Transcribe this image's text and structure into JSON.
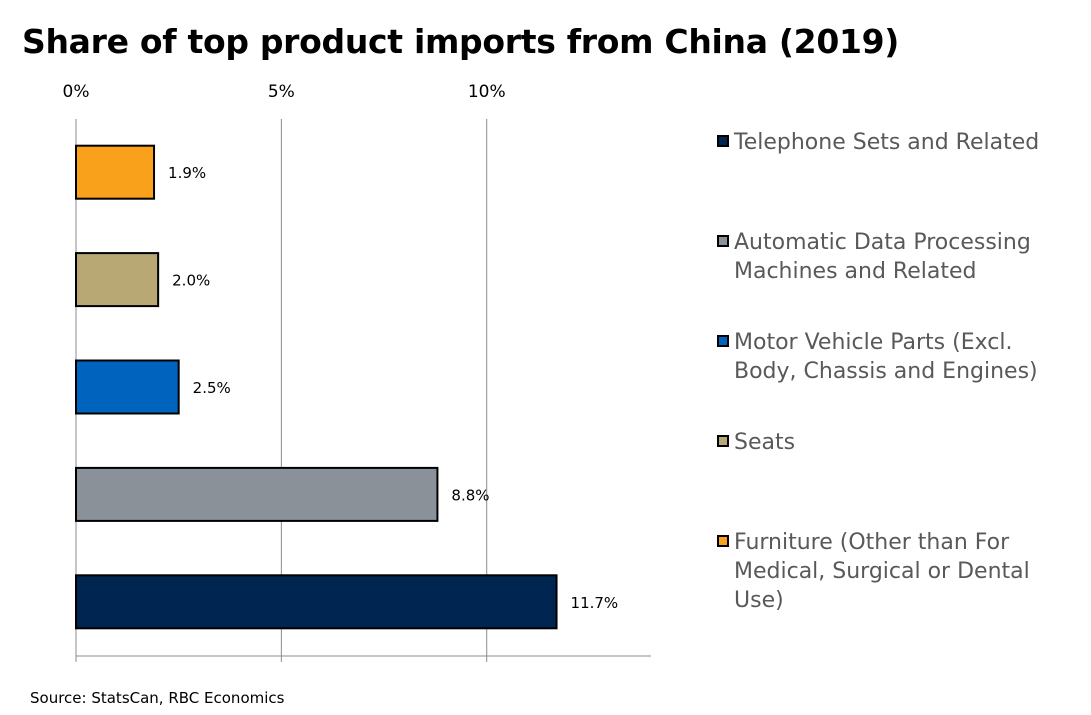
{
  "chart_data": {
    "type": "bar",
    "orientation": "horizontal",
    "title": "Share of top product imports from China (2019)",
    "xlabel": "",
    "ylabel": "",
    "xlim": [
      0,
      14
    ],
    "x_ticks": [
      0,
      5,
      10
    ],
    "x_tick_labels": [
      "0%",
      "5%",
      "10%"
    ],
    "x_axis_position": "top",
    "grid": true,
    "legend_position": "right",
    "categories": [
      "Telephone Sets and Related",
      "Automatic Data Processing Machines and Related",
      "Motor Vehicle Parts (Excl. Body, Chassis and Engines)",
      "Seats",
      "Furniture (Other than For Medical, Surgical or Dental Use)"
    ],
    "values": [
      11.7,
      8.8,
      2.5,
      2.0,
      1.9
    ],
    "data_labels": [
      "11.7%",
      "8.8%",
      "2.5%",
      "2.0%",
      "1.9%"
    ],
    "colors": [
      "#002551",
      "#8a9199",
      "#0063be",
      "#b8a974",
      "#f9a11b"
    ],
    "source": "Source: StatsCan, RBC Economics"
  },
  "legend": [
    {
      "label": "Telephone Sets and Related",
      "color": "#002551"
    },
    {
      "label": "Automatic Data Processing Machines and Related",
      "color": "#8a9199"
    },
    {
      "label": "Motor Vehicle Parts (Excl. Body, Chassis and Engines)",
      "color": "#0063be"
    },
    {
      "label": "Seats",
      "color": "#b8a974"
    },
    {
      "label": "Furniture (Other than For Medical, Surgical or Dental Use)",
      "color": "#f9a11b"
    }
  ]
}
